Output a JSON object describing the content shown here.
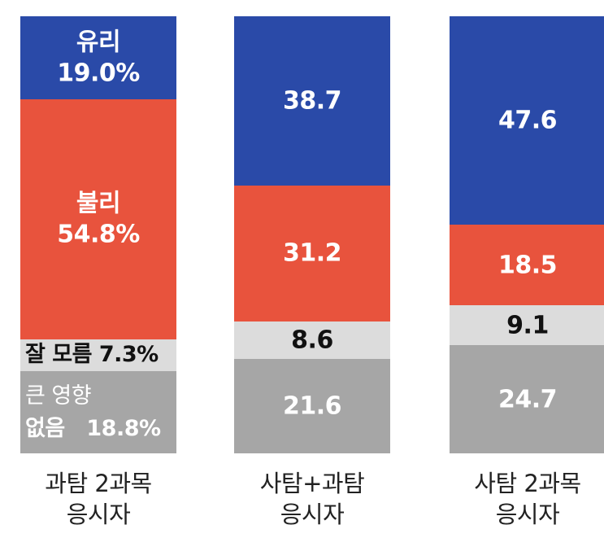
{
  "chart_data": {
    "type": "bar",
    "stacked": true,
    "normalized": true,
    "categories": [
      [
        "과탐 2과목",
        "응시자"
      ],
      [
        "사탐+과탐",
        "응시자"
      ],
      [
        "사탐 2과목",
        "응시자"
      ]
    ],
    "series": [
      {
        "key": "advantage",
        "color": "#2a4aa8",
        "text_style": "light",
        "values": [
          19.0,
          38.7,
          47.6
        ],
        "labels": [
          [
            "유리",
            "19.0%"
          ],
          [
            "38.7"
          ],
          [
            "47.6"
          ]
        ]
      },
      {
        "key": "disadvantage",
        "color": "#e8533d",
        "text_style": "light",
        "values": [
          54.8,
          31.2,
          18.5
        ],
        "labels": [
          [
            "불리",
            "54.8%"
          ],
          [
            "31.2"
          ],
          [
            "18.5"
          ]
        ]
      },
      {
        "key": "unknown",
        "color": "#dcdcdc",
        "text_style": "dark",
        "values": [
          7.3,
          8.6,
          9.1
        ],
        "labels": [
          [
            "잘 모름 7.3%"
          ],
          [
            "8.6"
          ],
          [
            "9.1"
          ]
        ]
      },
      {
        "key": "no-effect",
        "color": "#a6a6a6",
        "text_style": "light",
        "values": [
          18.8,
          21.6,
          24.7
        ],
        "labels": [
          [
            "큰 영향",
            "없음   18.8%"
          ],
          [
            "21.6"
          ],
          [
            "24.7"
          ]
        ]
      }
    ],
    "ylim": [
      0,
      100
    ],
    "legend": "none",
    "grid": false
  }
}
